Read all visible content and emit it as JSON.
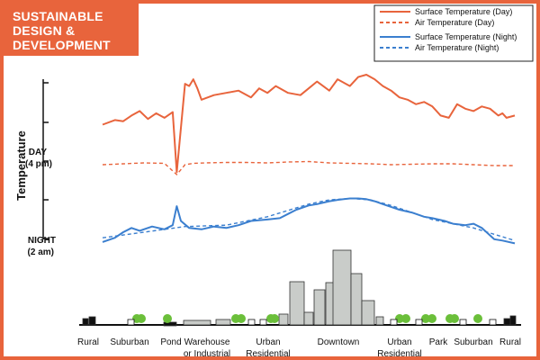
{
  "brand": {
    "line1": "SUSTAINABLE",
    "line2": "DESIGN &",
    "line3": "DEVELOPMENT",
    "color": "#e8643c"
  },
  "chart_data": {
    "type": "line",
    "ylabel": "Temperature",
    "y_markers": [
      {
        "line1": "DAY",
        "line2": "(4 pm)"
      },
      {
        "line1": "NIGHT",
        "line2": "(2 am)"
      }
    ],
    "legend": [
      {
        "name": "Surface Temperature (Day)",
        "color": "#e8643c",
        "dash": false
      },
      {
        "name": "Air Temperature  (Day)",
        "color": "#e8643c",
        "dash": true
      },
      {
        "name": "Surface Temperature (Night)",
        "color": "#3b7fcf",
        "dash": false
      },
      {
        "name": "Air Temperature (Night)",
        "color": "#3b7fcf",
        "dash": true
      }
    ],
    "legend_position": "top-right",
    "categories": [
      "Rural",
      "Suburban",
      "Pond",
      "Warehouse or Industrial",
      "Urban Residential",
      "Downtown",
      "Urban Residential",
      "Park",
      "Suburban",
      "Rural"
    ],
    "category_lines": [
      [
        "Rural"
      ],
      [
        "Suburban"
      ],
      [
        "Pond"
      ],
      [
        "Warehouse",
        "or Industrial"
      ],
      [
        "Urban",
        "Residential"
      ],
      [
        "Downtown"
      ],
      [
        "Urban",
        "Residential"
      ],
      [
        "Park"
      ],
      [
        "Suburban"
      ],
      [
        "Rural"
      ]
    ],
    "series": [
      {
        "name": "Surface Temperature (Day)",
        "x": [
          0,
          3,
          5,
          7,
          9,
          11,
          13,
          15,
          17,
          18,
          20,
          21,
          22,
          23,
          24,
          27,
          30,
          33,
          36,
          38,
          40,
          42,
          45,
          48,
          50,
          52,
          55,
          57,
          60,
          62,
          64,
          66,
          68,
          70,
          72,
          74,
          76,
          78,
          80,
          82,
          84,
          86,
          88,
          90,
          92,
          94,
          96,
          97,
          98,
          100
        ],
        "values": [
          52,
          56,
          55,
          60,
          64,
          57,
          62,
          58,
          63,
          10,
          88,
          86,
          92,
          84,
          74,
          78,
          80,
          82,
          76,
          84,
          80,
          86,
          80,
          78,
          84,
          90,
          82,
          92,
          86,
          94,
          96,
          92,
          86,
          82,
          76,
          74,
          70,
          72,
          68,
          60,
          58,
          70,
          66,
          64,
          68,
          66,
          60,
          62,
          58,
          60
        ]
      },
      {
        "name": "Air Temperature  (Day)",
        "x": [
          0,
          5,
          10,
          15,
          18,
          20,
          22,
          25,
          30,
          35,
          40,
          45,
          50,
          55,
          60,
          65,
          70,
          75,
          80,
          85,
          90,
          95,
          100
        ],
        "values": [
          42,
          44,
          46,
          45,
          20,
          42,
          45,
          46,
          47,
          47,
          46,
          48,
          49,
          46,
          45,
          44,
          42,
          43,
          44,
          44,
          42,
          40,
          40
        ]
      },
      {
        "name": "Surface Temperature (Night)",
        "x": [
          0,
          3,
          5,
          7,
          9,
          12,
          15,
          17,
          18,
          19,
          21,
          24,
          27,
          30,
          33,
          36,
          40,
          43,
          45,
          47,
          50,
          52,
          55,
          57,
          60,
          62,
          64,
          66,
          68,
          70,
          72,
          75,
          78,
          80,
          83,
          85,
          88,
          90,
          92,
          95,
          97,
          100
        ],
        "values": [
          4,
          10,
          18,
          24,
          20,
          26,
          22,
          28,
          55,
          34,
          24,
          22,
          26,
          24,
          28,
          34,
          36,
          38,
          44,
          50,
          56,
          58,
          62,
          64,
          66,
          66,
          65,
          62,
          58,
          54,
          50,
          46,
          40,
          38,
          34,
          30,
          28,
          30,
          24,
          8,
          6,
          2
        ],
        "note": "x in % along the transect"
      },
      {
        "name": "Air Temperature (Night)",
        "x": [
          0,
          10,
          20,
          30,
          40,
          50,
          55,
          60,
          65,
          70,
          80,
          90,
          100
        ],
        "values": [
          10,
          18,
          26,
          28,
          40,
          58,
          64,
          66,
          64,
          56,
          36,
          24,
          6
        ]
      }
    ]
  }
}
